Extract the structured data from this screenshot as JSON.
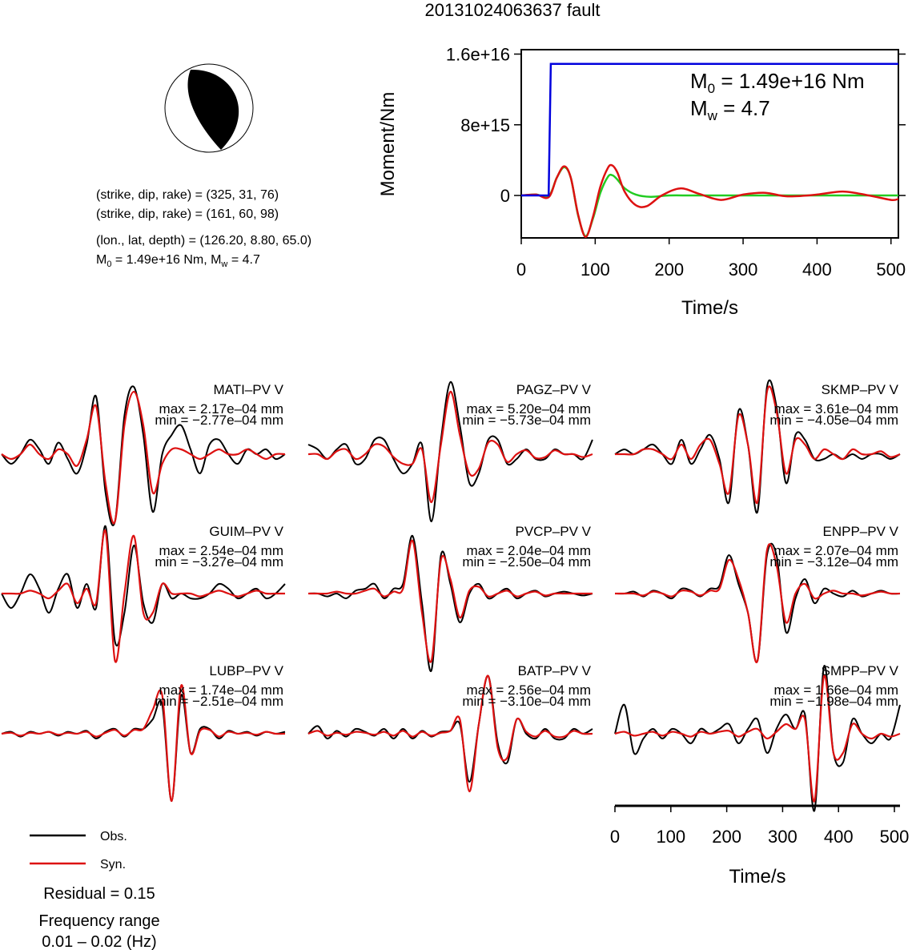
{
  "title": "20131024063637 fault",
  "focal": {
    "line1": "(strike, dip, rake) = (325, 31, 76)",
    "line2": "(strike, dip, rake) = (161, 60, 98)",
    "line3": "(lon., lat, depth) = (126.20, 8.80, 65.0)",
    "m0_label": "M",
    "m0_sub": "0",
    "m0_value": " = 1.49e+16 Nm, M",
    "mw_sub": "w",
    "mw_value": " = 4.7"
  },
  "legend": {
    "obs": "Obs.",
    "syn": "Syn.",
    "residual": "Residual = 0.15",
    "freq_title": "Frequency range",
    "freq_value": "0.01 – 0.02 (Hz)"
  },
  "colors": {
    "obs": "#000000",
    "syn": "#dd1111",
    "moment": "#0000dd",
    "stf": "#22cc22"
  },
  "chart_data": [
    {
      "type": "line",
      "xlabel": "Time/s",
      "ylabel": "Moment/Nm",
      "xlim": [
        0,
        510
      ],
      "ylim": [
        -4800000000000000.0,
        1.65e+16
      ],
      "xticks": [
        "0",
        "100",
        "200",
        "300",
        "400",
        "500"
      ],
      "yticks": [
        "0",
        "8e+15",
        "1.6e+16"
      ],
      "annotation_m0": "M₀ = 1.49e+16 Nm",
      "annotation_mw": "Mᵤ = 4.7",
      "annotation": {
        "m0_label": "M",
        "m0_sub": "0",
        "m0_value": " = 1.49e+16 Nm",
        "mw_label": "M",
        "mw_sub": "w",
        "mw_value": " = 4.7"
      },
      "series": [
        {
          "name": "moment",
          "x": [
            0,
            37,
            40,
            510
          ],
          "y": [
            0,
            0,
            1.49e+16,
            1.49e+16
          ]
        },
        {
          "name": "synthetic",
          "x": [
            0,
            20,
            37,
            48,
            58,
            67,
            77,
            87,
            97,
            107,
            117,
            123,
            130,
            140,
            155,
            170,
            190,
            215,
            240,
            270,
            300,
            330,
            360,
            400,
            435,
            470,
            500,
            510
          ],
          "y": [
            0,
            100000000000000.0,
            -200000000000000.0,
            2000000000000000.0,
            3300000000000000.0,
            2000000000000000.0,
            -2200000000000000.0,
            -4700000000000000.0,
            -2400000000000000.0,
            1000000000000000.0,
            3100000000000000.0,
            3400000000000000.0,
            2600000000000000.0,
            400000000000000.0,
            -1100000000000000.0,
            -1200000000000000.0,
            0,
            800000000000000.0,
            200000000000000.0,
            -500000000000000.0,
            100000000000000.0,
            300000000000000.0,
            -100000000000000.0,
            100000000000000.0,
            450000000000000.0,
            0,
            -500000000000000.0,
            -400000000000000.0
          ]
        },
        {
          "name": "stf",
          "x": [
            0,
            20,
            37,
            48,
            58,
            67,
            77,
            87,
            97,
            107,
            117,
            123,
            130,
            140,
            155,
            175,
            200,
            230,
            270,
            510
          ],
          "y": [
            0,
            100000000000000.0,
            -100000000000000.0,
            2000000000000000.0,
            3200000000000000.0,
            2000000000000000.0,
            -2300000000000000.0,
            -4600000000000000.0,
            -2600000000000000.0,
            300000000000000.0,
            2100000000000000.0,
            2300000000000000.0,
            1800000000000000.0,
            800000000000000.0,
            100000000000000.0,
            -150000000000000.0,
            0,
            0,
            0,
            0
          ]
        }
      ]
    },
    {
      "type": "line",
      "xlabel": "Time/s",
      "xlim": [
        0,
        510
      ],
      "xticks": [
        "0",
        "100",
        "200",
        "300",
        "400",
        "500"
      ],
      "stations": [
        {
          "name": "MATI–PV V",
          "max": "max = 2.17e–04 mm",
          "min": "min = −2.77e–04 mm",
          "obs": [
            0,
            -1,
            0,
            1.5,
            0.5,
            -1,
            1.2,
            -0.5,
            -2,
            1,
            6,
            -4,
            -7,
            4,
            7,
            2,
            -6,
            0,
            2,
            3,
            0.5,
            -2,
            1,
            1.5,
            0,
            -1,
            0.5,
            0,
            0.5,
            -0.5,
            0
          ],
          "syn": [
            0,
            -0.5,
            0,
            1,
            0,
            -0.5,
            0.5,
            0,
            -1.2,
            1.5,
            5,
            -3,
            -7,
            3,
            6.5,
            3,
            -4,
            -1,
            0.5,
            0.5,
            0,
            -0.5,
            0,
            0.5,
            0,
            0,
            0.5,
            0,
            -0.5,
            0,
            0
          ]
        },
        {
          "name": "PAGZ–PV V",
          "max": "max = 5.20e–04 mm",
          "min": "min = −5.73e–04 mm",
          "obs": [
            1,
            0.5,
            -0.5,
            0.5,
            1,
            -1,
            -0.5,
            1.5,
            1.5,
            -0.5,
            -2,
            -1,
            1,
            -7,
            1.5,
            7.5,
            3,
            -3,
            -2,
            1.5,
            1.5,
            -1,
            -0.5,
            0.5,
            -0.5,
            -0.5,
            0.5,
            0,
            0,
            -0.5,
            1.5
          ],
          "syn": [
            0,
            0,
            -0.5,
            0.3,
            0.5,
            -0.5,
            0,
            1,
            0.8,
            -0.3,
            -1,
            -1,
            0.5,
            -5,
            1,
            6.5,
            2,
            -2,
            -1.5,
            1.2,
            1,
            -0.8,
            0,
            0.4,
            -0.4,
            -0.3,
            0.4,
            0,
            0,
            -0.3,
            0
          ]
        },
        {
          "name": "SKMP–PV V",
          "max": "max = 3.61e–04 mm",
          "min": "min = −4.05e–04 mm",
          "obs": [
            0,
            0.5,
            0,
            0.5,
            1,
            0,
            -1,
            1.5,
            -1,
            0.5,
            2,
            -0.5,
            -5,
            4.5,
            1,
            -6,
            7,
            5,
            -3,
            2,
            1.5,
            -0.5,
            -0.5,
            0,
            -0.5,
            0,
            -0.5,
            0,
            0,
            -0.5,
            0
          ],
          "syn": [
            0,
            0,
            0,
            0.5,
            0.5,
            0,
            -0.5,
            1,
            -0.5,
            1,
            1.5,
            -1,
            -4,
            4,
            1,
            -5,
            6.5,
            4.5,
            -2,
            1.5,
            1,
            -0.5,
            0.5,
            0,
            -0.5,
            0.5,
            0,
            0,
            0.3,
            -0.3,
            0
          ]
        },
        {
          "name": "GUIM–PV V",
          "max": "max = 2.54e–04 mm",
          "min": "min = −3.27e–04 mm",
          "obs": [
            0,
            -1.5,
            0,
            2,
            0.5,
            -2,
            0.5,
            2,
            -1.5,
            1,
            -1.5,
            7,
            -5,
            -2,
            5,
            -1,
            -3,
            1,
            -0.5,
            0,
            -0.5,
            -0.5,
            0,
            1,
            0.5,
            -0.5,
            0,
            0.5,
            -0.5,
            0,
            1
          ],
          "syn": [
            0,
            0,
            0,
            0.3,
            0,
            -0.5,
            0.3,
            1,
            -1,
            0.5,
            -1,
            6.5,
            -7,
            0,
            6,
            -2,
            -2,
            1,
            0,
            0,
            0,
            -0.3,
            0,
            0.3,
            0,
            -0.3,
            0,
            0.3,
            0,
            0,
            0
          ]
        },
        {
          "name": "PVCP–PV V",
          "max": "max = 2.04e–04 mm",
          "min": "min = −2.50e–04 mm",
          "obs": [
            0,
            0,
            -0.3,
            0,
            -0.5,
            0.3,
            0.5,
            1,
            -0.5,
            0.5,
            1,
            6,
            -1,
            -8,
            4,
            1,
            -3,
            0,
            1,
            -0.5,
            0,
            0.5,
            -0.5,
            0,
            0.3,
            -0.3,
            0,
            0.2,
            0,
            -0.2,
            0
          ],
          "syn": [
            0,
            0,
            0,
            0.2,
            0,
            0,
            0.3,
            0.5,
            -0.3,
            0.2,
            0.5,
            5.5,
            -2,
            -7,
            3.5,
            1.5,
            -2.5,
            0.3,
            0.7,
            -0.3,
            0,
            0.3,
            -0.3,
            0,
            0.2,
            -0.2,
            0,
            0,
            0,
            0,
            0
          ]
        },
        {
          "name": "ENPP–PV V",
          "max": "max = 2.07e–04 mm",
          "min": "min = −3.12e–04 mm",
          "obs": [
            0,
            0,
            0.2,
            -0.3,
            0.3,
            0,
            -0.5,
            0.5,
            0.3,
            -0.3,
            0.5,
            0.8,
            4,
            1,
            -2,
            -7,
            4,
            4,
            -4,
            -0.5,
            1.5,
            -1,
            0.5,
            0,
            -0.3,
            0.3,
            -0.3,
            0,
            0.3,
            0,
            0
          ],
          "syn": [
            0,
            0,
            0,
            -0.2,
            0.2,
            0,
            -0.3,
            0.3,
            0.2,
            -0.2,
            0.3,
            0.5,
            3.5,
            1.5,
            -2,
            -7,
            4.5,
            3,
            -3,
            0,
            1,
            -0.5,
            0,
            0.3,
            0,
            0,
            -0.2,
            0,
            0.2,
            0,
            0
          ]
        },
        {
          "name": "LUBP–PV V",
          "max": "max = 1.74e–04 mm",
          "min": "min = −2.51e–04 mm",
          "obs": [
            0,
            0.2,
            -0.3,
            0.2,
            0,
            0.2,
            -0.2,
            0.2,
            0,
            0.3,
            -0.5,
            0.2,
            0.5,
            -0.3,
            0.5,
            0.5,
            1.5,
            3,
            -7,
            4,
            -2,
            0.5,
            0.5,
            -0.5,
            0.3,
            0,
            0.2,
            -0.2,
            0.2,
            0,
            0.2
          ],
          "syn": [
            0,
            0.1,
            -0.2,
            0.1,
            0,
            0.2,
            -0.1,
            0.1,
            0,
            0.2,
            -0.3,
            0.1,
            0.4,
            -0.2,
            0.4,
            0.5,
            2.5,
            4,
            -7,
            5,
            -2,
            0.3,
            0.4,
            -0.3,
            0.2,
            0,
            0.1,
            -0.1,
            0.2,
            0,
            0
          ]
        },
        {
          "name": "BATP–PV V",
          "max": "max = 2.56e–04 mm",
          "min": "min = −3.10e–04 mm",
          "obs": [
            0,
            0.8,
            -0.5,
            0.3,
            -0.3,
            0.5,
            0.2,
            -0.2,
            0.5,
            -0.5,
            0.5,
            -0.5,
            0.3,
            -0.3,
            0.2,
            0.3,
            1,
            -5,
            1,
            6,
            -1,
            -3,
            1.5,
            0,
            -0.5,
            0.5,
            -0.5,
            -0.5,
            0.5,
            0,
            0.5
          ],
          "syn": [
            0,
            0.3,
            -0.2,
            0.1,
            -0.1,
            0.2,
            0.1,
            -0.1,
            0.2,
            -0.2,
            0.3,
            -0.3,
            0.2,
            -0.2,
            0.1,
            0.3,
            1.5,
            -6,
            1,
            6,
            -1.5,
            -2.5,
            1.5,
            0.2,
            -0.3,
            0.3,
            -0.3,
            -0.3,
            0.3,
            0,
            0
          ]
        },
        {
          "name": "SMPP–PV V",
          "max": "max = 1.66e–04 mm",
          "min": "min = −1.98e–04 mm",
          "obs": [
            0,
            3,
            -2,
            -0.5,
            0.5,
            -0.5,
            0.5,
            0,
            -1,
            0.5,
            0,
            0.5,
            1,
            -1,
            0.5,
            1.5,
            -2,
            0.5,
            2,
            0.5,
            2,
            -8,
            7,
            -2,
            -3,
            1.5,
            0,
            -1,
            0,
            -0.5,
            3
          ],
          "syn": [
            0,
            0.2,
            -0.2,
            0,
            0.2,
            -0.2,
            0.2,
            0,
            -0.3,
            0.2,
            0,
            0.2,
            0.3,
            -0.3,
            0.2,
            0.5,
            -0.5,
            0.2,
            1,
            0.5,
            1.5,
            -7,
            6,
            -2,
            -2,
            1,
            0,
            -0.5,
            0,
            -0.3,
            0
          ]
        }
      ]
    }
  ]
}
